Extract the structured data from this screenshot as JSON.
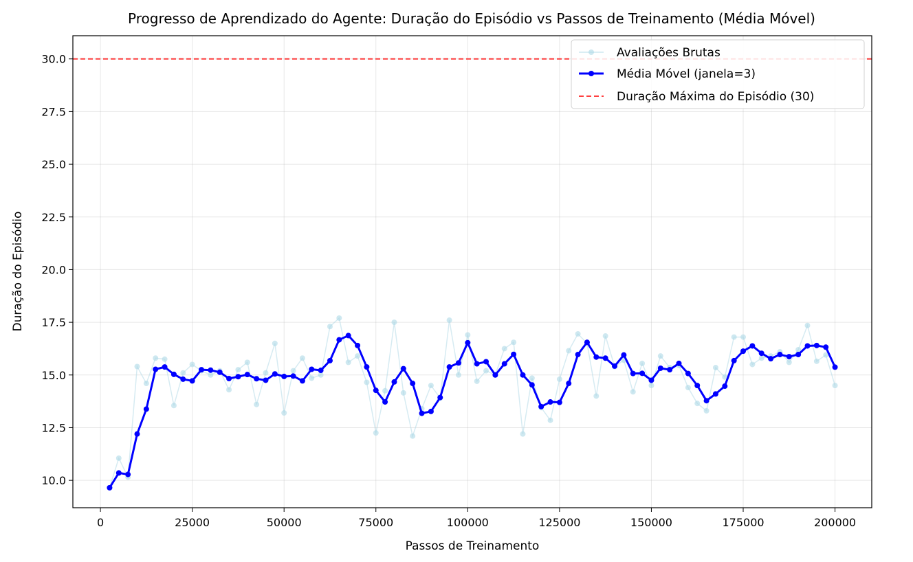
{
  "chart_data": {
    "type": "line",
    "title": "Progresso de Aprendizado do Agente: Duração do Episódio vs Passos de Treinamento (Média Móvel)",
    "xlabel": "Passos de Treinamento",
    "ylabel": "Duração do Episódio",
    "xlim": [
      -7500,
      210000
    ],
    "ylim": [
      8.7,
      31.1
    ],
    "x_ticks": [
      0,
      25000,
      50000,
      75000,
      100000,
      125000,
      150000,
      175000,
      200000
    ],
    "x_tick_labels": [
      "0",
      "25000",
      "50000",
      "75000",
      "100000",
      "125000",
      "150000",
      "175000",
      "200000"
    ],
    "y_ticks": [
      10.0,
      12.5,
      15.0,
      17.5,
      20.0,
      22.5,
      25.0,
      27.5,
      30.0
    ],
    "y_tick_labels": [
      "10.0",
      "12.5",
      "15.0",
      "17.5",
      "20.0",
      "22.5",
      "25.0",
      "27.5",
      "30.0"
    ],
    "grid": true,
    "legend_position": "top-right",
    "x": [
      2500,
      5000,
      7500,
      10000,
      12500,
      15000,
      17500,
      20000,
      22500,
      25000,
      27500,
      30000,
      32500,
      35000,
      37500,
      40000,
      42500,
      45000,
      47500,
      50000,
      52500,
      55000,
      57500,
      60000,
      62500,
      65000,
      67500,
      70000,
      72500,
      75000,
      77500,
      80000,
      82500,
      85000,
      87500,
      90000,
      92500,
      95000,
      97500,
      100000,
      102500,
      105000,
      107500,
      110000,
      112500,
      115000,
      117500,
      120000,
      122500,
      125000,
      127500,
      130000,
      132500,
      135000,
      137500,
      140000,
      142500,
      145000,
      147500,
      150000,
      152500,
      155000,
      157500,
      160000,
      162500,
      165000,
      167500,
      170000,
      172500,
      175000,
      177500,
      180000,
      182500,
      185000,
      187500,
      190000,
      192500,
      195000,
      197500,
      200000
    ],
    "series": [
      {
        "name": "Avaliações Brutas",
        "color": "#add8e6",
        "values": [
          9.65,
          11.05,
          10.15,
          15.4,
          14.6,
          15.8,
          15.75,
          13.55,
          15.1,
          15.5,
          15.2,
          15.0,
          15.2,
          14.3,
          15.25,
          15.6,
          13.6,
          15.1,
          16.5,
          13.2,
          15.2,
          15.8,
          14.85,
          15.0,
          17.3,
          17.7,
          15.6,
          15.9,
          14.65,
          12.25,
          14.25,
          17.5,
          14.15,
          12.1,
          13.4,
          14.5,
          13.9,
          17.6,
          15.0,
          16.9,
          14.7,
          15.2,
          15.0,
          16.25,
          16.55,
          12.2,
          14.85,
          13.45,
          12.85,
          14.8,
          16.15,
          16.95,
          16.5,
          14.0,
          16.85,
          15.4,
          15.7,
          14.2,
          15.55,
          14.5,
          15.9,
          15.35,
          15.45,
          14.4,
          13.65,
          13.3,
          15.35,
          14.9,
          16.8,
          16.8,
          15.5,
          15.8,
          15.9,
          16.1,
          15.6,
          16.2,
          17.35,
          15.65,
          15.95,
          14.5
        ]
      },
      {
        "name": "Média Móvel (janela=3)",
        "color": "#0000ff",
        "values": [
          9.65,
          10.35,
          10.28,
          12.2,
          13.38,
          15.27,
          15.38,
          15.03,
          14.8,
          14.72,
          15.25,
          15.23,
          15.13,
          14.83,
          14.92,
          15.02,
          14.82,
          14.75,
          15.05,
          14.93,
          14.95,
          14.72,
          15.27,
          15.22,
          15.68,
          16.67,
          16.87,
          16.4,
          15.38,
          14.27,
          13.72,
          14.67,
          15.3,
          14.6,
          13.18,
          13.27,
          13.93,
          15.38,
          15.57,
          16.53,
          15.53,
          15.63,
          15.0,
          15.53,
          15.98,
          15.0,
          14.53,
          13.5,
          13.72,
          13.7,
          14.6,
          15.97,
          16.55,
          15.85,
          15.8,
          15.42,
          15.95,
          15.07,
          15.08,
          14.75,
          15.32,
          15.25,
          15.55,
          15.07,
          14.5,
          13.78,
          14.1,
          14.47,
          15.68,
          16.13,
          16.38,
          16.03,
          15.77,
          15.97,
          15.87,
          15.97,
          16.38,
          16.4,
          16.32,
          15.37
        ]
      }
    ],
    "reference_line": {
      "name": "Duração Máxima do Episódio (30)",
      "y": 30,
      "color": "#ff0000",
      "style": "dashed"
    }
  }
}
